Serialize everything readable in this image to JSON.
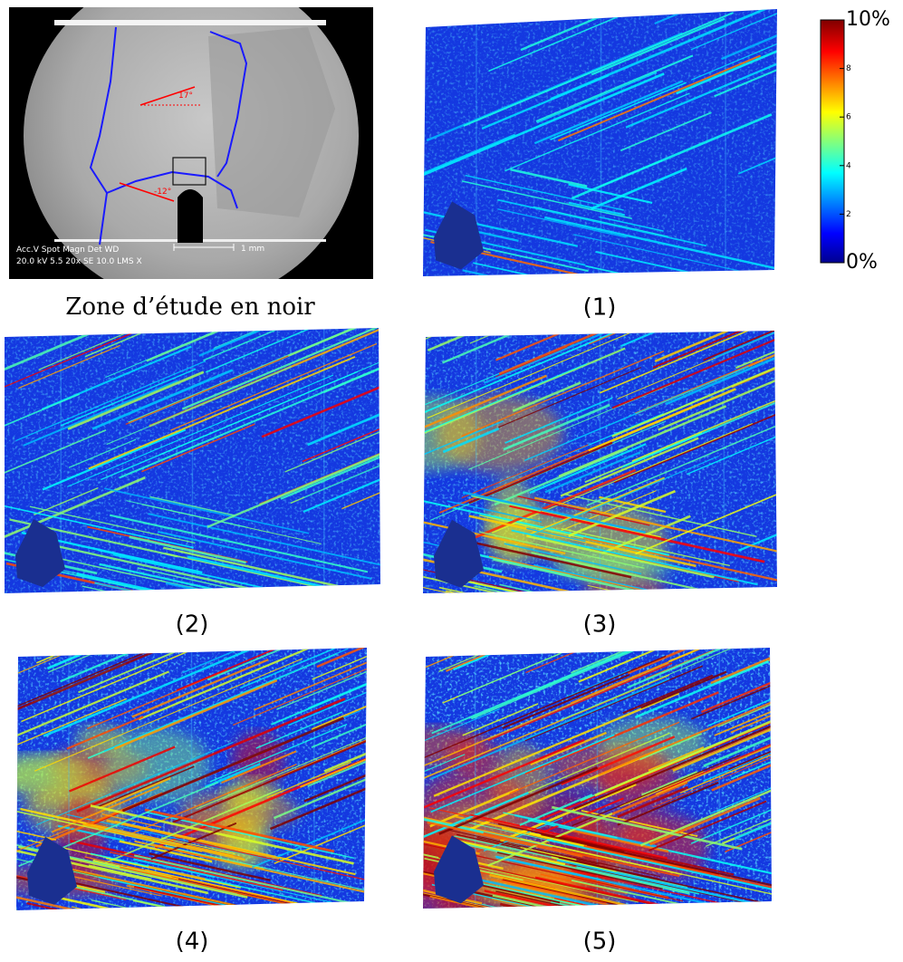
{
  "figure": {
    "sem_image": {
      "labels": {
        "angle_top": "17°",
        "angle_bottom": "-12°",
        "info_line1": "Acc.V  Spot Magn    Det  WD",
        "info_line2": "20.0 kV 5.5   20x     SE   10.0  LMS X",
        "scale": "1 mm"
      }
    },
    "colorbar": {
      "lim": [
        0,
        10
      ],
      "ticks": [
        {
          "value": 0,
          "label": "0%"
        },
        2,
        4,
        6,
        8,
        {
          "value": 10,
          "label": "10%"
        }
      ]
    },
    "captions": [
      "Zone d’étude en noir",
      "(1)",
      "(2)",
      "(3)",
      "(4)",
      "(5)"
    ]
  }
}
